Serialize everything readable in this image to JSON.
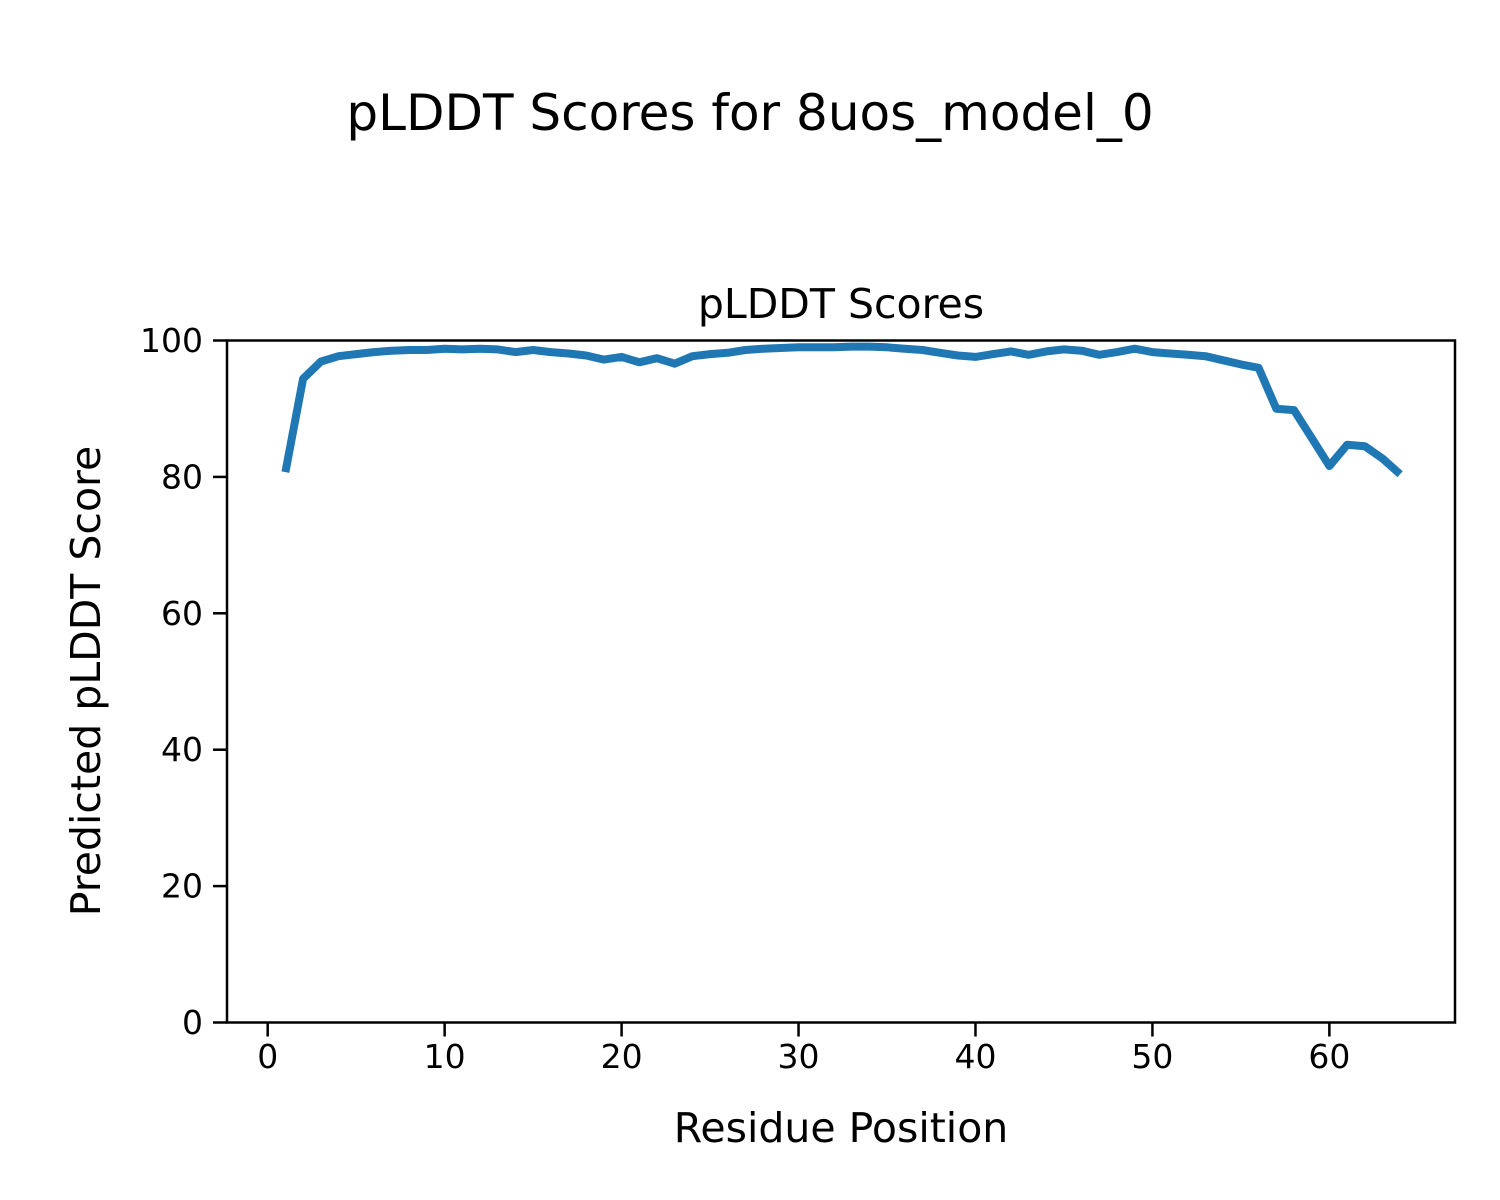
{
  "figure": {
    "suptitle": "pLDDT Scores for 8uos_model_0",
    "background_color": "#ffffff",
    "text_color": "#000000",
    "spine_color": "#000000"
  },
  "chart_data": {
    "type": "line",
    "title": "pLDDT Scores",
    "xlabel": "Residue Position",
    "ylabel": "Predicted pLDDT Score",
    "xlim": [
      -2.3,
      67.1
    ],
    "ylim": [
      0,
      100
    ],
    "xticks": [
      0,
      10,
      20,
      30,
      40,
      50,
      60
    ],
    "yticks": [
      0,
      20,
      40,
      60,
      80,
      100
    ],
    "grid": false,
    "legend": "none",
    "x": [
      1,
      2,
      3,
      4,
      5,
      6,
      7,
      8,
      9,
      10,
      11,
      12,
      13,
      14,
      15,
      16,
      17,
      18,
      19,
      20,
      21,
      22,
      23,
      24,
      25,
      26,
      27,
      28,
      29,
      30,
      31,
      32,
      33,
      34,
      35,
      36,
      37,
      38,
      39,
      40,
      41,
      42,
      43,
      44,
      45,
      46,
      47,
      48,
      49,
      50,
      51,
      52,
      53,
      54,
      55,
      56,
      57,
      58,
      59,
      60,
      61,
      62,
      63,
      64
    ],
    "series": [
      {
        "name": "pLDDT",
        "color": "#1f77b4",
        "values": [
          80.7,
          94.4,
          96.9,
          97.7,
          98.0,
          98.3,
          98.5,
          98.6,
          98.6,
          98.8,
          98.7,
          98.8,
          98.7,
          98.3,
          98.6,
          98.3,
          98.1,
          97.8,
          97.2,
          97.6,
          96.8,
          97.4,
          96.6,
          97.7,
          98.0,
          98.2,
          98.6,
          98.8,
          98.9,
          99.0,
          99.0,
          99.0,
          99.1,
          99.1,
          99.0,
          98.8,
          98.6,
          98.2,
          97.8,
          97.6,
          98.0,
          98.4,
          97.9,
          98.4,
          98.7,
          98.5,
          97.9,
          98.3,
          98.8,
          98.3,
          98.1,
          97.9,
          97.7,
          97.1,
          96.5,
          96.0,
          90.0,
          89.8,
          85.7,
          81.6,
          84.7,
          84.5,
          82.7,
          80.4
        ]
      }
    ]
  }
}
